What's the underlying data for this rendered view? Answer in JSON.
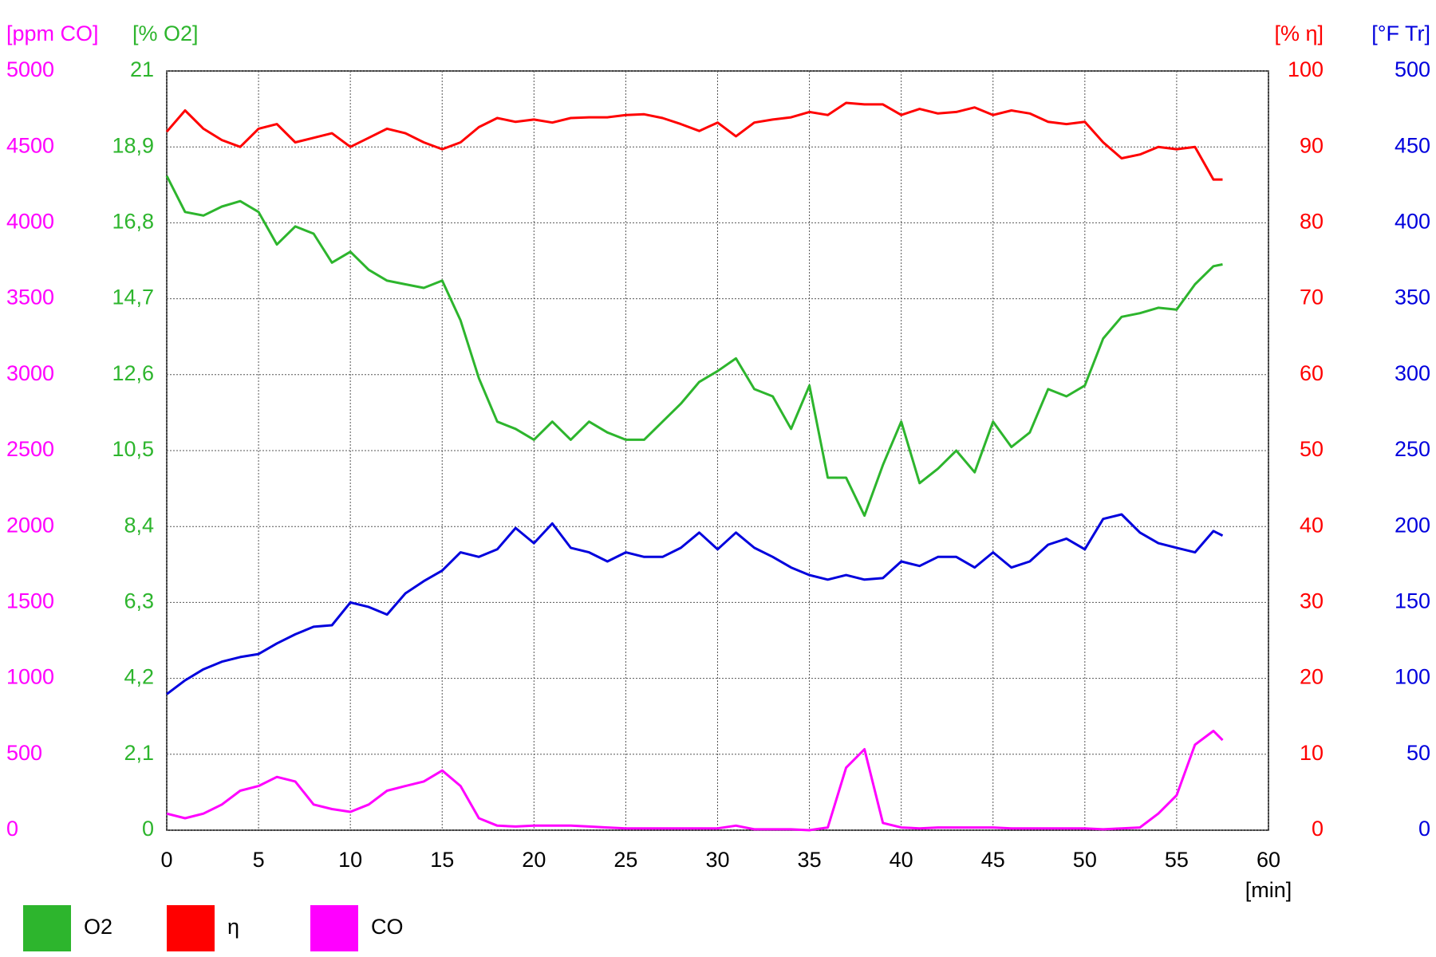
{
  "chart_data": {
    "type": "line",
    "x": [
      0,
      1,
      2,
      3,
      4,
      5,
      6,
      7,
      8,
      9,
      10,
      11,
      12,
      13,
      14,
      15,
      16,
      17,
      18,
      19,
      20,
      21,
      22,
      23,
      24,
      25,
      26,
      27,
      28,
      29,
      30,
      31,
      32,
      33,
      34,
      35,
      36,
      37,
      38,
      39,
      40,
      41,
      42,
      43,
      44,
      45,
      46,
      47,
      48,
      49,
      50,
      51,
      52,
      53,
      54,
      55,
      56,
      57,
      57.5
    ],
    "xlim": [
      0,
      60
    ],
    "xticks": [
      0,
      5,
      10,
      15,
      20,
      25,
      30,
      35,
      40,
      45,
      50,
      55,
      60
    ],
    "xlabel": "[min]",
    "grid": true,
    "axes": [
      {
        "label": "[ppm CO]",
        "color": "#ff00ff",
        "ylim": [
          0,
          5000
        ],
        "yticks": [
          0,
          500,
          1000,
          1500,
          2000,
          2500,
          3000,
          3500,
          4000,
          4500,
          5000
        ]
      },
      {
        "label": "[% O2]",
        "color": "#2db52d",
        "ylim": [
          0,
          21
        ],
        "yticks": [
          0,
          {
            "value": 2.1,
            "label": "2,1"
          },
          {
            "value": 4.2,
            "label": "4,2"
          },
          {
            "value": 6.3,
            "label": "6,3"
          },
          {
            "value": 8.4,
            "label": "8,4"
          },
          {
            "value": 10.5,
            "label": "10,5"
          },
          {
            "value": 12.6,
            "label": "12,6"
          },
          {
            "value": 14.7,
            "label": "14,7"
          },
          {
            "value": 16.8,
            "label": "16,8"
          },
          {
            "value": 18.9,
            "label": "18,9"
          },
          21
        ]
      },
      {
        "label": "[% η]",
        "color": "#ff0000",
        "ylim": [
          0,
          100
        ],
        "yticks": [
          0,
          10,
          20,
          30,
          40,
          50,
          60,
          70,
          80,
          90,
          100
        ]
      },
      {
        "label": "[°F Tr]",
        "color": "#0000dd",
        "ylim": [
          0,
          500
        ],
        "yticks": [
          0,
          50,
          100,
          150,
          200,
          250,
          300,
          350,
          400,
          450,
          500
        ]
      }
    ],
    "series": [
      {
        "name": "O2",
        "color": "#2db52d",
        "axis": 1,
        "values": [
          18.1,
          17.1,
          17.0,
          17.25,
          17.4,
          17.1,
          16.2,
          16.7,
          16.5,
          15.7,
          16.0,
          15.5,
          15.2,
          15.1,
          15.0,
          15.2,
          14.1,
          12.5,
          11.3,
          11.1,
          10.8,
          11.3,
          10.8,
          11.3,
          11.0,
          10.8,
          10.8,
          11.3,
          11.8,
          12.4,
          12.7,
          13.05,
          12.2,
          12.0,
          11.1,
          12.3,
          9.75,
          9.75,
          8.7,
          10.1,
          11.3,
          9.6,
          10.0,
          10.5,
          9.9,
          11.3,
          10.6,
          11.0,
          12.2,
          12.0,
          12.3,
          13.6,
          14.2,
          14.3,
          14.45,
          14.4,
          15.1,
          15.6,
          15.65
        ]
      },
      {
        "name": "η",
        "color": "#ff0000",
        "axis": 2,
        "values": [
          92.0,
          94.8,
          92.4,
          90.9,
          90.0,
          92.4,
          93.0,
          90.6,
          91.2,
          91.8,
          90.0,
          91.2,
          92.4,
          91.8,
          90.6,
          89.7,
          90.6,
          92.6,
          93.8,
          93.3,
          93.6,
          93.2,
          93.8,
          93.9,
          93.9,
          94.2,
          94.3,
          93.8,
          93.0,
          92.1,
          93.2,
          91.4,
          93.2,
          93.6,
          93.9,
          94.6,
          94.2,
          95.8,
          95.6,
          95.6,
          94.2,
          95.0,
          94.4,
          94.6,
          95.2,
          94.2,
          94.8,
          94.4,
          93.3,
          93.0,
          93.3,
          90.6,
          88.5,
          89.0,
          90.0,
          89.7,
          90.0,
          85.7,
          85.7
        ]
      },
      {
        "name": "CO",
        "color": "#ff00ff",
        "axis": 0,
        "values": [
          109,
          79,
          109,
          169,
          260,
          291,
          351,
          321,
          169,
          139,
          121,
          169,
          260,
          291,
          321,
          393,
          291,
          79,
          30,
          24,
          30,
          30,
          30,
          24,
          18,
          12,
          12,
          12,
          12,
          12,
          12,
          30,
          6,
          6,
          6,
          0,
          18,
          412,
          533,
          48,
          18,
          12,
          18,
          18,
          18,
          18,
          12,
          12,
          12,
          12,
          12,
          6,
          12,
          18,
          109,
          230,
          563,
          654,
          593
        ]
      },
      {
        "color": "#0000dd",
        "axis": 3,
        "values": [
          89.6,
          98.7,
          106,
          111,
          114,
          116,
          123,
          129,
          134,
          135,
          150,
          147,
          142,
          156,
          164,
          171,
          183,
          180,
          185,
          199,
          189,
          202,
          186,
          183,
          177,
          183,
          180,
          180,
          186,
          196,
          185,
          196,
          186,
          180,
          173,
          168,
          165,
          168,
          165,
          166,
          177,
          174,
          180,
          180,
          173,
          183,
          173,
          177,
          188,
          192,
          185,
          205,
          208,
          196,
          189,
          186,
          183,
          197,
          194
        ]
      }
    ]
  }
}
